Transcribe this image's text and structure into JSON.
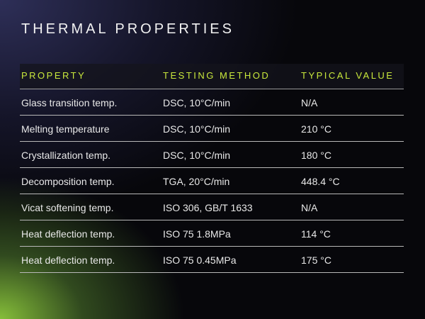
{
  "title": "THERMAL PROPERTIES",
  "table": {
    "headers": [
      "PROPERTY",
      "TESTING METHOD",
      "TYPICAL VALUE"
    ],
    "rows": [
      [
        "Glass transition temp.",
        "DSC, 10°C/min",
        "N/A"
      ],
      [
        "Melting temperature",
        "DSC, 10°C/min",
        "210 °C"
      ],
      [
        "Crystallization temp.",
        "DSC, 10°C/min",
        "180 °C"
      ],
      [
        "Decomposition temp.",
        "TGA, 20°C/min",
        "448.4 °C"
      ],
      [
        "Vicat softening temp.",
        "ISO 306, GB/T 1633",
        "N/A"
      ],
      [
        "Heat deflection temp.",
        "ISO 75 1.8MPa",
        "114 °C"
      ],
      [
        "Heat deflection temp.",
        "ISO 75 0.45MPa",
        "175 °C"
      ]
    ]
  }
}
